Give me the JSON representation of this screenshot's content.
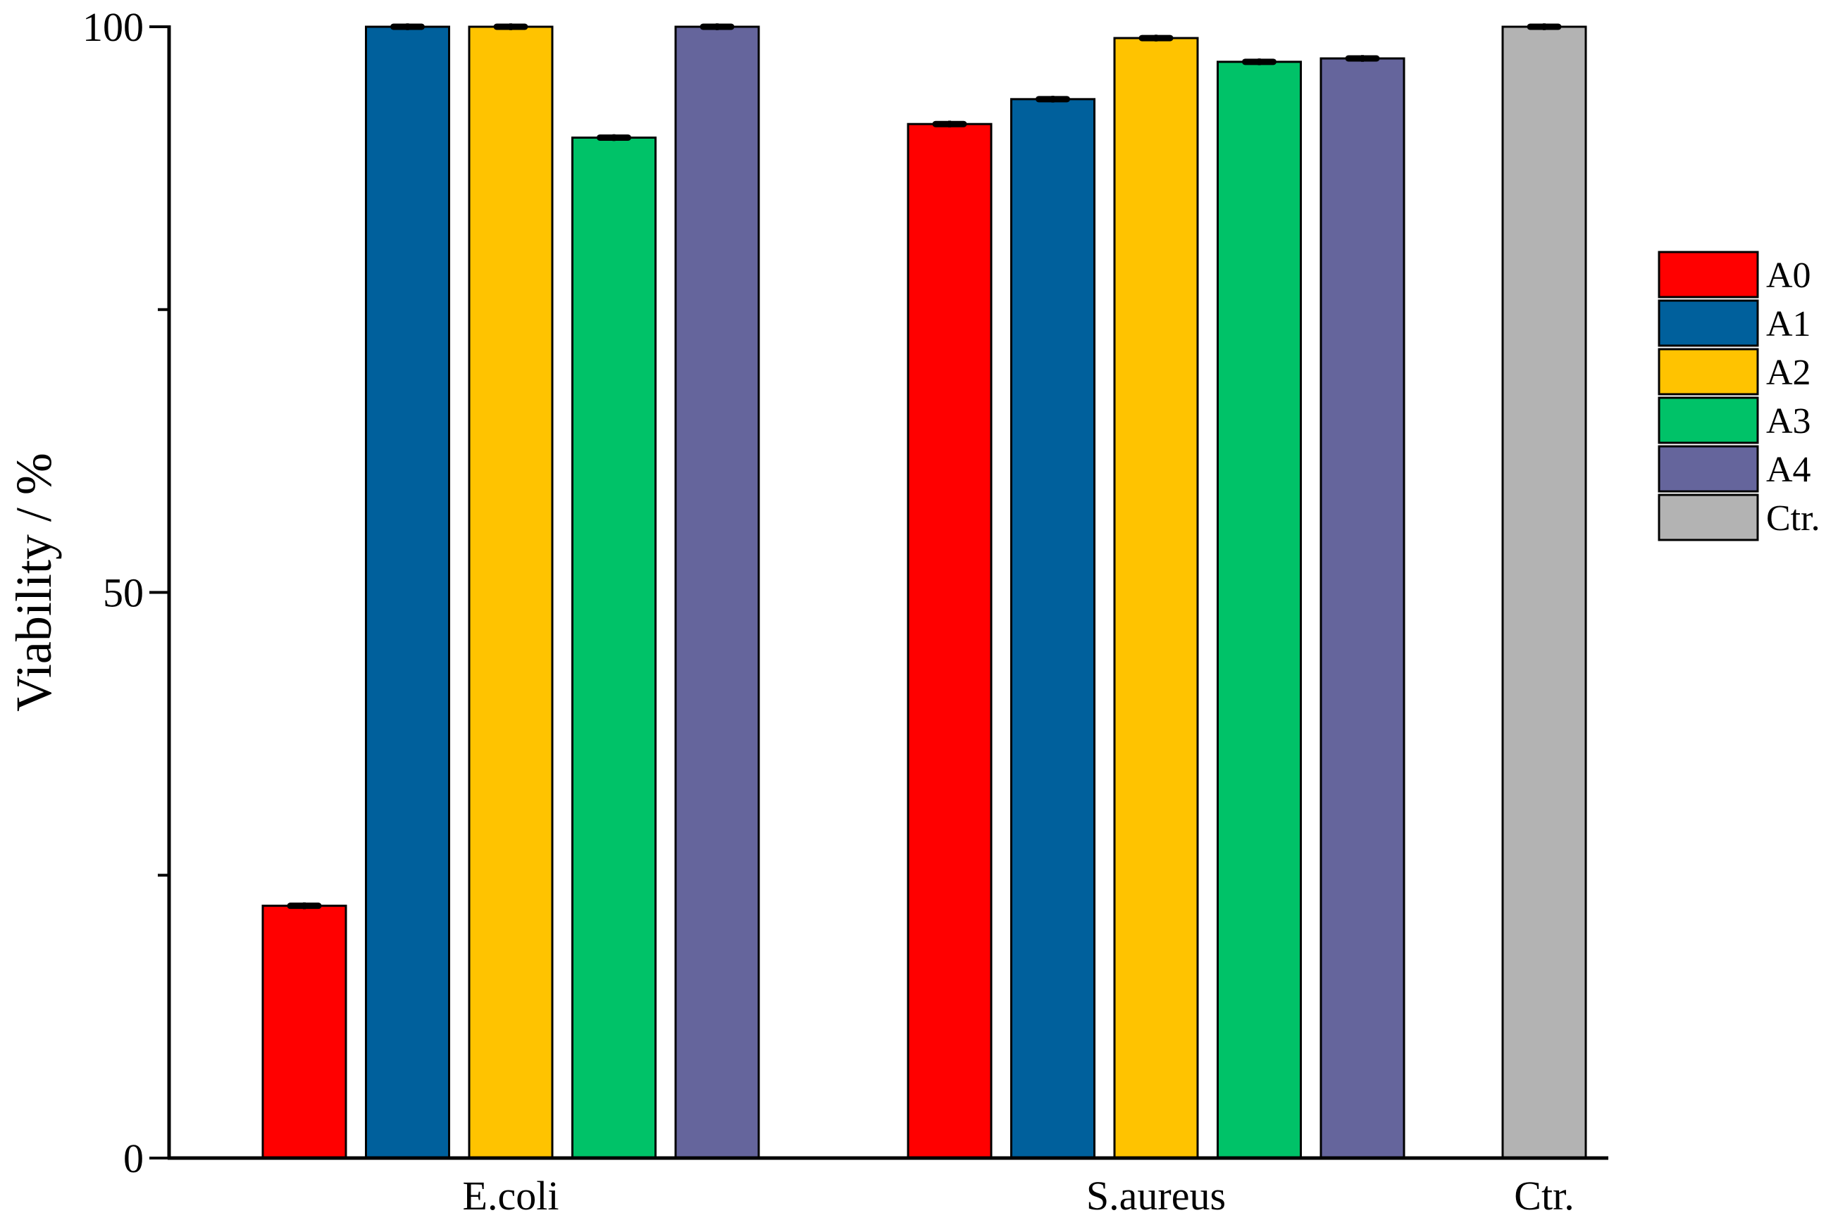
{
  "chart_data": {
    "type": "bar",
    "title": "",
    "xlabel": "",
    "ylabel": "Viability / %",
    "ylim": [
      0,
      100
    ],
    "yticks": [
      {
        "value": 0,
        "label": "0"
      },
      {
        "value": 50,
        "label": "50"
      },
      {
        "value": 100,
        "label": "100"
      }
    ],
    "yminor_ticks": [
      25,
      75
    ],
    "grid": false,
    "legend_position": "right",
    "error_bars": true,
    "groups": [
      {
        "label": "E.coli",
        "bars": [
          {
            "series": "A0",
            "value": 22.3,
            "error": 0.3
          },
          {
            "series": "A1",
            "value": 100,
            "error": 0.3
          },
          {
            "series": "A2",
            "value": 100,
            "error": 0.3
          },
          {
            "series": "A3",
            "value": 90.2,
            "error": 0.3
          },
          {
            "series": "A4",
            "value": 100,
            "error": 0.3
          }
        ]
      },
      {
        "label": "S.aureus",
        "bars": [
          {
            "series": "A0",
            "value": 91.4,
            "error": 0.3
          },
          {
            "series": "A1",
            "value": 93.6,
            "error": 0.3
          },
          {
            "series": "A2",
            "value": 99.0,
            "error": 0.3
          },
          {
            "series": "A3",
            "value": 96.9,
            "error": 0.3
          },
          {
            "series": "A4",
            "value": 97.2,
            "error": 0.3
          }
        ]
      },
      {
        "label": "Ctr.",
        "bars": [
          {
            "series": "Ctr.",
            "value": 100,
            "error": 0.3
          }
        ]
      }
    ],
    "series": [
      {
        "name": "A0",
        "color": "#ff0000"
      },
      {
        "name": "A1",
        "color": "#00609c"
      },
      {
        "name": "A2",
        "color": "#ffc300"
      },
      {
        "name": "A3",
        "color": "#00c268"
      },
      {
        "name": "A4",
        "color": "#65659c"
      },
      {
        "name": "Ctr.",
        "color": "#b3b3b3"
      }
    ]
  }
}
